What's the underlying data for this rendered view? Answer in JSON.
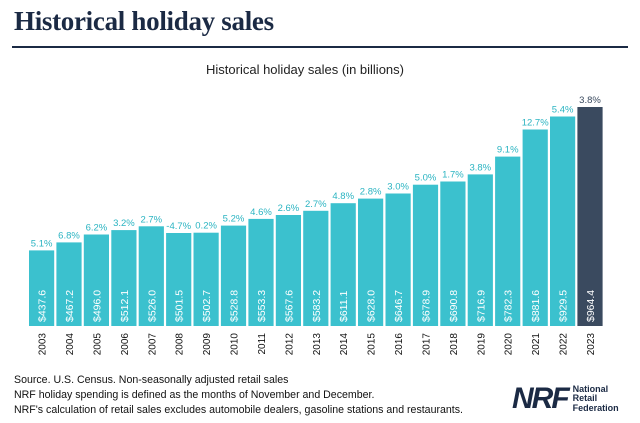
{
  "page": {
    "title": "Historical holiday sales"
  },
  "chart_data": {
    "type": "bar",
    "title": "Historical holiday sales (in billions)",
    "xlabel": "",
    "ylabel": "",
    "categories": [
      "2003",
      "2004",
      "2005",
      "2006",
      "2007",
      "2008",
      "2009",
      "2010",
      "2011",
      "2012",
      "2013",
      "2014",
      "2015",
      "2016",
      "2017",
      "2018",
      "2019",
      "2020",
      "2021",
      "2022",
      "2023"
    ],
    "values": [
      437.6,
      467.2,
      496.0,
      512.1,
      526.0,
      501.5,
      502.7,
      528.8,
      553.3,
      567.6,
      583.2,
      611.1,
      628.0,
      646.7,
      678.9,
      690.8,
      716.9,
      782.3,
      881.6,
      929.5,
      964.4
    ],
    "value_labels": [
      "$437.6",
      "$467.2",
      "$496.0",
      "$512.1",
      "$526.0",
      "$501.5",
      "$502.7",
      "$528.8",
      "$553.3",
      "$567.6",
      "$583.2",
      "$611.1",
      "$628.0",
      "$646.7",
      "$678.9",
      "$690.8",
      "$716.9",
      "$782.3",
      "$881.6",
      "$929.5",
      "$964.4"
    ],
    "growth_labels": [
      "5.1%",
      "6.8%",
      "6.2%",
      "3.2%",
      "2.7%",
      "-4.7%",
      "0.2%",
      "5.2%",
      "4.6%",
      "2.6%",
      "2.7%",
      "4.8%",
      "2.8%",
      "3.0%",
      "5.0%",
      "1.7%",
      "3.8%",
      "9.1%",
      "12.7%",
      "5.4%",
      "3.8%"
    ],
    "ylim": [
      0,
      990
    ],
    "grid": false,
    "colors": {
      "bar": "#3bc1ce",
      "highlight": "#3a4a5f",
      "growth_text": "#2bb4c2",
      "highlight_growth_text": "#3a4a5f"
    },
    "highlight_index": 20
  },
  "footnotes": [
    "Source. U.S. Census. Non-seasonally adjusted retail sales",
    "NRF holiday spending is defined as the months of November and December.",
    "NRF's calculation of retail sales excludes automobile dealers, gasoline stations and restaurants."
  ],
  "logo": {
    "mark": "NRF",
    "line1": "National",
    "line2": "Retail",
    "line3": "Federation"
  }
}
